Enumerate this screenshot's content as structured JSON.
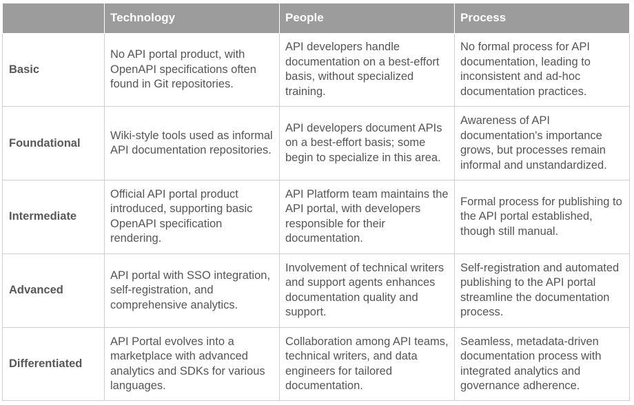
{
  "header": {
    "corner": "",
    "columns": [
      "Technology",
      "People",
      "Process"
    ]
  },
  "rows": [
    {
      "level": "Basic",
      "technology": "No API portal product, with OpenAPI specifications often found in Git repositories.",
      "people": "API developers handle documentation on a best-effort basis, without specialized training.",
      "process": "No formal process for API documentation, leading to inconsistent and ad-hoc documentation practices."
    },
    {
      "level": "Foundational",
      "technology": "Wiki-style tools used as informal API documentation repositories.",
      "people": "API developers document APIs on a best-effort basis; some begin to specialize in this area.",
      "process": "Awareness of API documentation's importance grows, but processes remain informal and unstandardized."
    },
    {
      "level": "Intermediate",
      "technology": "Official API portal product introduced, supporting basic OpenAPI specification rendering.",
      "people": "API Platform team maintains the API portal, with developers responsible for their documentation.",
      "process": "Formal process for publishing to the API portal established, though still manual."
    },
    {
      "level": "Advanced",
      "technology": "API portal with SSO integration, self-registration, and comprehensive analytics.",
      "people": "Involvement of technical writers and support agents enhances documentation quality and support.",
      "process": "Self-registration and automated publishing to the API portal streamline the documentation process."
    },
    {
      "level": "Differentiated",
      "technology": "API Portal evolves into a marketplace with advanced analytics and SDKs for various languages.",
      "people": "Collaboration among API teams, technical writers, and data engineers for tailored documentation.",
      "process": "Seamless, metadata-driven documentation process with integrated analytics and governance adherence."
    }
  ],
  "colors": {
    "header_bg": "#9c9c9c",
    "header_text": "#ffffff",
    "grid_line": "#cfcfcf",
    "body_text": "#555555"
  }
}
